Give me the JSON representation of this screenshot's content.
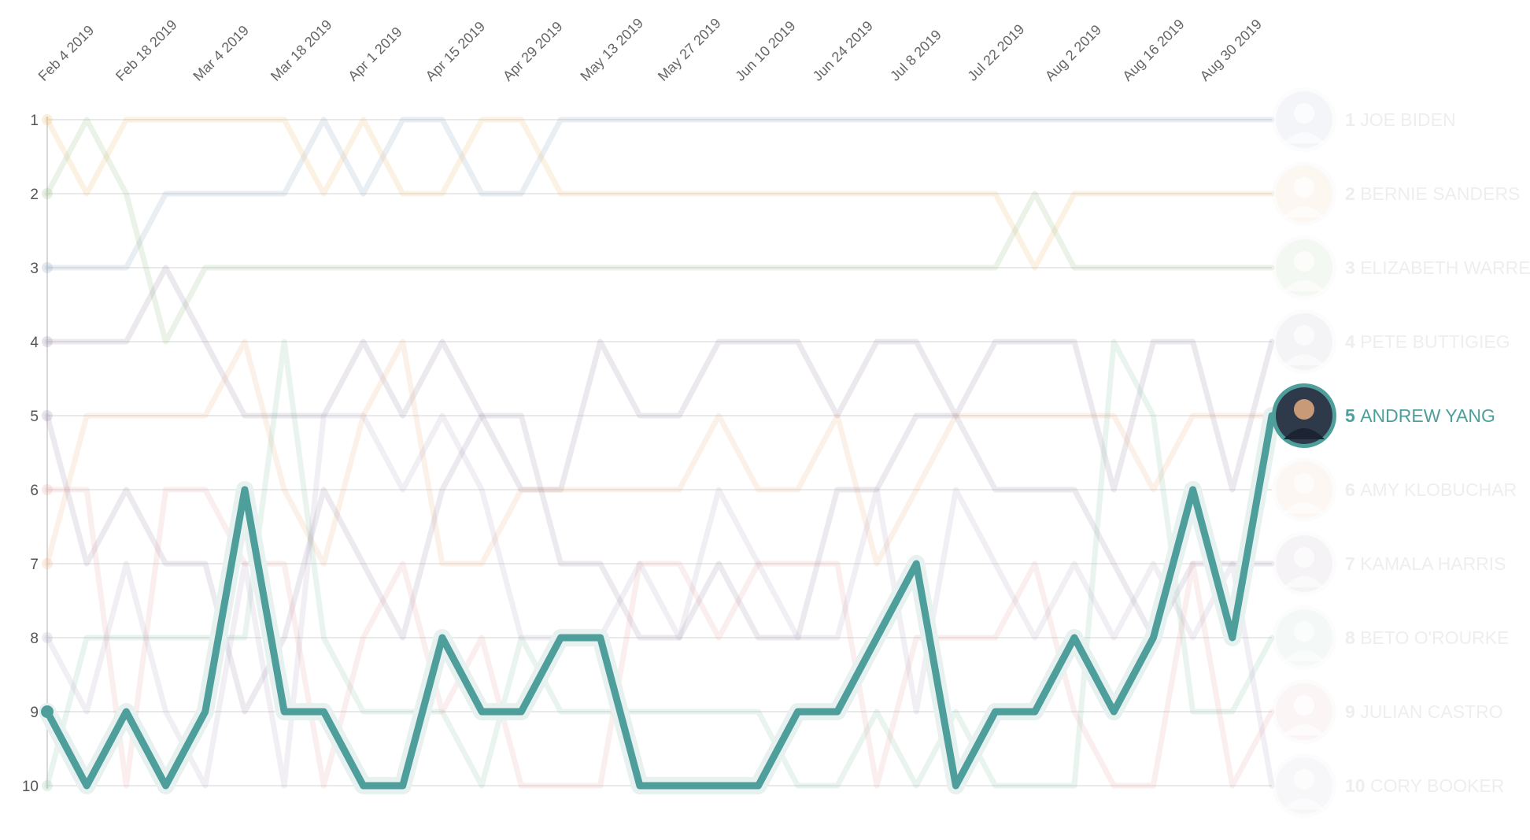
{
  "chart_data": {
    "type": "line",
    "x_ticks": [
      "Feb 4 2019",
      "Feb 18 2019",
      "Mar 4 2019",
      "Mar 18 2019",
      "Apr 1 2019",
      "Apr 15 2019",
      "Apr 29 2019",
      "May 13 2019",
      "May 27 2019",
      "Jun 10 2019",
      "Jun 24 2019",
      "Jul 8 2019",
      "Jul 22 2019",
      "Aug 2 2019",
      "Aug 16 2019",
      "Aug 30 2019"
    ],
    "y_ticks": [
      "1",
      "2",
      "3",
      "4",
      "5",
      "6",
      "7",
      "8",
      "9",
      "10"
    ],
    "ylim": [
      1,
      10
    ],
    "y_reversed": true,
    "highlighted_series": "ANDREW YANG",
    "highlight_color": "#4e9e9c",
    "legend": [
      {
        "rank": "1",
        "name": "JOE BIDEN"
      },
      {
        "rank": "2",
        "name": "BERNIE SANDERS"
      },
      {
        "rank": "3",
        "name": "ELIZABETH WARREN"
      },
      {
        "rank": "4",
        "name": "PETE BUTTIGIEG"
      },
      {
        "rank": "5",
        "name": "ANDREW YANG"
      },
      {
        "rank": "6",
        "name": "AMY KLOBUCHAR"
      },
      {
        "rank": "7",
        "name": "KAMALA HARRIS"
      },
      {
        "rank": "8",
        "name": "BETO O'ROURKE"
      },
      {
        "rank": "9",
        "name": "JULIAN CASTRO"
      },
      {
        "rank": "10",
        "name": "CORY BOOKER"
      }
    ],
    "series": [
      {
        "name": "JOE BIDEN",
        "color": "#8fa8c2",
        "values": [
          3,
          3,
          3,
          2,
          2,
          2,
          2,
          1,
          2,
          1,
          1,
          2,
          2,
          1,
          1,
          1,
          1,
          1,
          1,
          1,
          1,
          1,
          1,
          1,
          1,
          1,
          1,
          1,
          1,
          1,
          1,
          1
        ]
      },
      {
        "name": "BERNIE SANDERS",
        "color": "#f0c078",
        "values": [
          1,
          2,
          1,
          1,
          1,
          1,
          1,
          2,
          1,
          2,
          2,
          1,
          1,
          2,
          2,
          2,
          2,
          2,
          2,
          2,
          2,
          2,
          2,
          2,
          2,
          3,
          2,
          2,
          2,
          2,
          2,
          2
        ]
      },
      {
        "name": "ELIZABETH WARREN",
        "color": "#9cc08a",
        "values": [
          2,
          1,
          2,
          4,
          3,
          3,
          3,
          3,
          3,
          3,
          3,
          3,
          3,
          3,
          3,
          3,
          3,
          3,
          3,
          3,
          3,
          3,
          3,
          3,
          3,
          2,
          3,
          3,
          3,
          3,
          3,
          3
        ]
      },
      {
        "name": "PETE BUTTIGIEG",
        "color": "#9c8aaa",
        "values": [
          4,
          4,
          4,
          3,
          4,
          5,
          5,
          5,
          4,
          5,
          4,
          5,
          6,
          6,
          4,
          5,
          5,
          4,
          4,
          4,
          5,
          4,
          4,
          5,
          4,
          4,
          4,
          6,
          4,
          4,
          6,
          4
        ]
      },
      {
        "name": "ANDREW YANG",
        "color": "#4e9e9c",
        "values": [
          9,
          10,
          9,
          10,
          9,
          6,
          9,
          9,
          10,
          10,
          8,
          9,
          9,
          8,
          8,
          10,
          10,
          10,
          10,
          9,
          9,
          8,
          7,
          10,
          9,
          9,
          8,
          9,
          8,
          6,
          8,
          5
        ]
      },
      {
        "name": "AMY KLOBUCHAR",
        "color": "#f0b890",
        "values": [
          7,
          5,
          5,
          5,
          5,
          4,
          6,
          7,
          5,
          4,
          7,
          7,
          6,
          6,
          6,
          6,
          6,
          5,
          6,
          6,
          5,
          7,
          6,
          5,
          5,
          5,
          5,
          5,
          6,
          5,
          5,
          5
        ]
      },
      {
        "name": "KAMALA HARRIS",
        "color": "#a090b0",
        "values": [
          5,
          7,
          6,
          7,
          7,
          9,
          8,
          6,
          7,
          8,
          6,
          5,
          5,
          7,
          7,
          8,
          8,
          7,
          8,
          8,
          6,
          6,
          5,
          5,
          6,
          6,
          6,
          7,
          8,
          7,
          7,
          7
        ]
      },
      {
        "name": "BETO O'ROURKE",
        "color": "#98c8b0",
        "values": [
          10,
          8,
          8,
          8,
          8,
          8,
          4,
          8,
          9,
          9,
          9,
          10,
          8,
          9,
          9,
          9,
          9,
          9,
          9,
          10,
          10,
          9,
          10,
          9,
          10,
          10,
          10,
          4,
          5,
          9,
          9,
          8
        ]
      },
      {
        "name": "JULIAN CASTRO",
        "color": "#e8a8a8",
        "values": [
          6,
          6,
          10,
          6,
          6,
          7,
          7,
          10,
          8,
          7,
          9,
          8,
          10,
          10,
          10,
          7,
          7,
          8,
          7,
          7,
          7,
          10,
          8,
          8,
          8,
          7,
          9,
          10,
          10,
          7,
          10,
          9
        ]
      },
      {
        "name": "CORY BOOKER",
        "color": "#b8b0c8",
        "values": [
          8,
          9,
          7,
          9,
          10,
          7,
          10,
          5,
          5,
          6,
          5,
          6,
          8,
          8,
          8,
          7,
          8,
          6,
          7,
          8,
          8,
          6,
          9,
          6,
          7,
          8,
          7,
          8,
          7,
          8,
          7,
          10
        ]
      }
    ]
  }
}
